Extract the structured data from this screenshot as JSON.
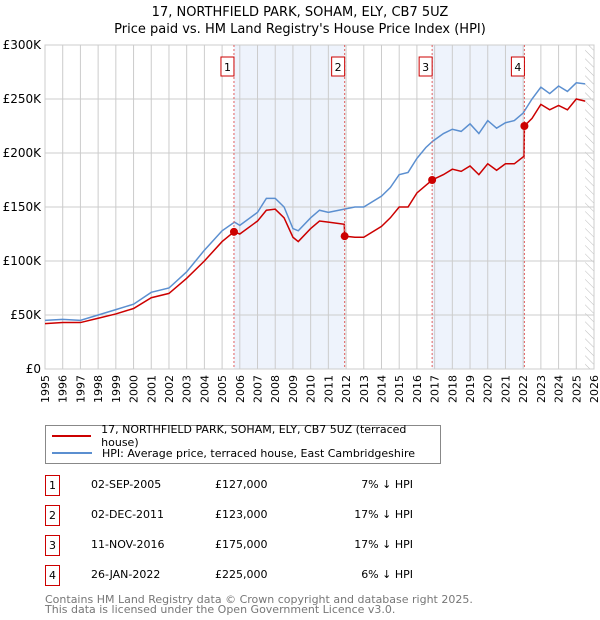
{
  "title": "17, NORTHFIELD PARK, SOHAM, ELY, CB7 5UZ",
  "subtitle": "Price paid vs. HM Land Registry's House Price Index (HPI)",
  "legend": {
    "property": "17, NORTHFIELD PARK, SOHAM, ELY, CB7 5UZ (terraced house)",
    "hpi": "HPI: Average price, terraced house, East Cambridgeshire"
  },
  "colors": {
    "property": "#cc0000",
    "hpi": "#5b8fd0",
    "shade": "#eef3fc"
  },
  "sales": [
    {
      "n": "1",
      "date": "02-SEP-2005",
      "price": "£127,000",
      "hpi": "7% ↓ HPI",
      "x": 2005.67,
      "y": 127
    },
    {
      "n": "2",
      "date": "02-DEC-2011",
      "price": "£123,000",
      "hpi": "17% ↓ HPI",
      "x": 2011.92,
      "y": 123
    },
    {
      "n": "3",
      "date": "11-NOV-2016",
      "price": "£175,000",
      "hpi": "17% ↓ HPI",
      "x": 2016.86,
      "y": 175
    },
    {
      "n": "4",
      "date": "26-JAN-2022",
      "price": "£225,000",
      "hpi": "6% ↓ HPI",
      "x": 2022.07,
      "y": 225
    }
  ],
  "footer": [
    "Contains HM Land Registry data © Crown copyright and database right 2025.",
    "This data is licensed under the Open Government Licence v3.0."
  ],
  "chart_data": {
    "type": "line",
    "xlim": [
      1995,
      2026
    ],
    "ylim": [
      0,
      300
    ],
    "yticks": [
      0,
      50,
      100,
      150,
      200,
      250,
      300
    ],
    "ytick_labels": [
      "£0",
      "£50K",
      "£100K",
      "£150K",
      "£200K",
      "£250K",
      "£300K"
    ],
    "xticks": [
      "1995",
      "1996",
      "1997",
      "1998",
      "1999",
      "2000",
      "2001",
      "2002",
      "2003",
      "2004",
      "2005",
      "2006",
      "2007",
      "2008",
      "2009",
      "2010",
      "2011",
      "2012",
      "2013",
      "2014",
      "2015",
      "2016",
      "2017",
      "2018",
      "2019",
      "2020",
      "2021",
      "2022",
      "2023",
      "2024",
      "2025",
      "2026"
    ],
    "series": [
      {
        "name": "hpi",
        "x": [
          1995,
          1996,
          1997,
          1998,
          1999,
          2000,
          2001,
          2002,
          2003,
          2004,
          2005,
          2005.7,
          2006,
          2007,
          2007.5,
          2008,
          2008.5,
          2009,
          2009.3,
          2010,
          2010.5,
          2011,
          2011.9,
          2012.5,
          2013,
          2014,
          2014.5,
          2015,
          2015.5,
          2016,
          2016.5,
          2016.9,
          2017.5,
          2018,
          2018.5,
          2019,
          2019.5,
          2020,
          2020.5,
          2021,
          2021.5,
          2022,
          2022.5,
          2023,
          2023.5,
          2024,
          2024.5,
          2025,
          2025.5
        ],
        "y": [
          45,
          46,
          45,
          50,
          55,
          60,
          71,
          75,
          90,
          110,
          128,
          136,
          133,
          145,
          158,
          158,
          150,
          130,
          128,
          140,
          147,
          145,
          148,
          150,
          150,
          160,
          168,
          180,
          182,
          195,
          205,
          211,
          218,
          222,
          220,
          227,
          218,
          230,
          223,
          228,
          230,
          237,
          250,
          261,
          255,
          262,
          257,
          265,
          264
        ]
      },
      {
        "name": "property",
        "x": [
          1995,
          1996,
          1997,
          1998,
          1999,
          2000,
          2001,
          2002,
          2003,
          2004,
          2005,
          2005.67,
          2006,
          2007,
          2007.5,
          2008,
          2008.5,
          2009,
          2009.3,
          2010,
          2010.5,
          2011,
          2011.9,
          2011.92,
          2012.5,
          2013,
          2014,
          2014.5,
          2015,
          2015.5,
          2016,
          2016.5,
          2016.86,
          2017.5,
          2018,
          2018.5,
          2019,
          2019.5,
          2020,
          2020.5,
          2021,
          2021.5,
          2022.05,
          2022.07,
          2022.5,
          2023,
          2023.5,
          2024,
          2024.5,
          2025,
          2025.5
        ],
        "y": [
          42,
          43,
          43,
          47,
          51,
          56,
          66,
          70,
          84,
          100,
          118,
          127,
          125,
          137,
          147,
          148,
          140,
          122,
          118,
          130,
          137,
          136,
          134,
          123,
          122,
          122,
          132,
          140,
          150,
          150,
          163,
          170,
          175,
          180,
          185,
          183,
          188,
          180,
          190,
          184,
          190,
          190,
          197,
          225,
          232,
          245,
          240,
          244,
          240,
          250,
          248
        ]
      }
    ]
  }
}
